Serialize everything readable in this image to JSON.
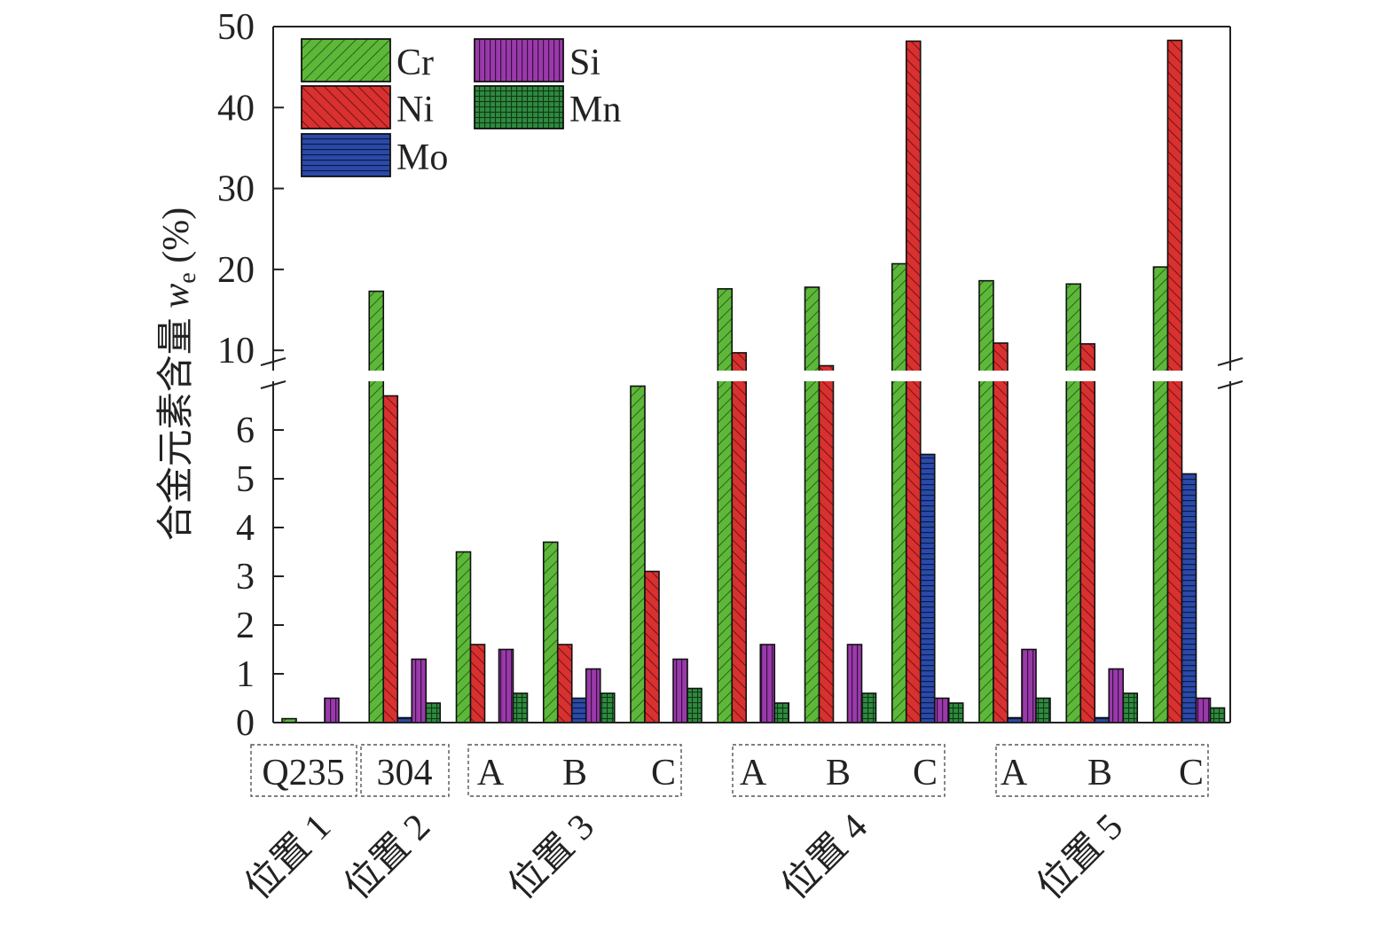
{
  "chart_data": {
    "type": "bar",
    "ylabel": "合金元素含量",
    "ylabel_symbol": "w",
    "ylabel_subscript": "e",
    "ylabel_unit": "(%)",
    "y_axis_break": true,
    "ylim_lower": [
      0,
      7
    ],
    "ylim_upper": [
      7.5,
      50
    ],
    "yticks_lower": [
      "0",
      "1",
      "2",
      "3",
      "4",
      "5",
      "6"
    ],
    "yticks_upper": [
      "10",
      "20",
      "30",
      "40",
      "50"
    ],
    "legend_position": "top-left",
    "series_colors": {
      "Cr": "#5db83a",
      "Ni": "#d93030",
      "Mo": "#2b4aa8",
      "Si": "#9a3aaa",
      "Mn": "#2f8a3e"
    },
    "categories": [
      "Q235",
      "304",
      "A",
      "B",
      "C",
      "A",
      "B",
      "C",
      "A",
      "B",
      "C"
    ],
    "series": [
      {
        "name": "Cr",
        "values": [
          0.08,
          17.3,
          3.5,
          3.7,
          6.9,
          17.6,
          17.8,
          20.7,
          18.6,
          18.2,
          20.3
        ]
      },
      {
        "name": "Ni",
        "values": [
          0,
          6.7,
          1.6,
          1.6,
          3.1,
          9.7,
          8.1,
          48.2,
          10.9,
          10.8,
          48.3
        ]
      },
      {
        "name": "Mo",
        "values": [
          0,
          0.1,
          0,
          0.5,
          0,
          0,
          0,
          5.5,
          0.1,
          0.1,
          5.1
        ]
      },
      {
        "name": "Si",
        "values": [
          0.5,
          1.3,
          1.5,
          1.1,
          1.3,
          1.6,
          1.6,
          0.5,
          1.5,
          1.1,
          0.5
        ]
      },
      {
        "name": "Mn",
        "values": [
          0,
          0.4,
          0.6,
          0.6,
          0.7,
          0.4,
          0.6,
          0.4,
          0.5,
          0.6,
          0.3
        ]
      }
    ],
    "category_groups": [
      {
        "label": "Q235"
      },
      {
        "label": "304"
      },
      {
        "labels": [
          "A",
          "B",
          "C"
        ]
      },
      {
        "labels": [
          "A",
          "B",
          "C"
        ]
      },
      {
        "labels": [
          "A",
          "B",
          "C"
        ]
      }
    ],
    "locations": [
      "位置 1",
      "位置 2",
      "位置 3",
      "位置 4",
      "位置 5"
    ]
  }
}
